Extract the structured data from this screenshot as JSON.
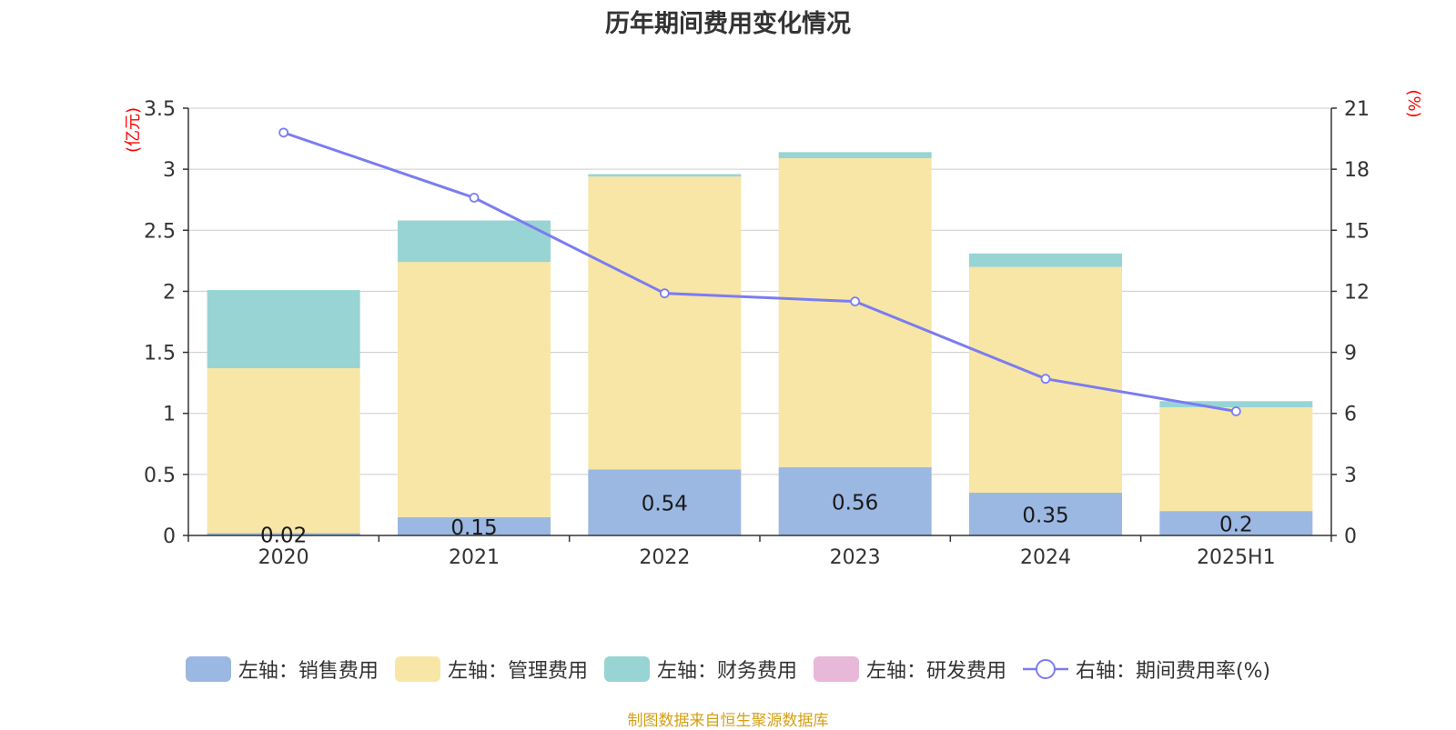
{
  "chart_data": {
    "type": "bar",
    "title": "历年期间费用变化情况",
    "categories": [
      "2020",
      "2021",
      "2022",
      "2023",
      "2024",
      "2025H1"
    ],
    "left_axis": {
      "label": "(亿元)",
      "min": 0,
      "max": 3.5,
      "ticks": [
        "0",
        "0.5",
        "1",
        "1.5",
        "2",
        "2.5",
        "3",
        "3.5"
      ],
      "tick_values": [
        0,
        0.5,
        1,
        1.5,
        2,
        2.5,
        3,
        3.5
      ]
    },
    "right_axis": {
      "label": "(%)",
      "min": 0,
      "max": 21,
      "ticks": [
        "0",
        "3",
        "6",
        "9",
        "12",
        "15",
        "18",
        "21"
      ],
      "tick_values": [
        0,
        3,
        6,
        9,
        12,
        15,
        18,
        21
      ]
    },
    "series": [
      {
        "name": "左轴：销售费用",
        "kind": "bar",
        "axis": "left",
        "color": "#9bb8e3",
        "values": [
          0.02,
          0.15,
          0.54,
          0.56,
          0.35,
          0.2
        ],
        "labels": [
          "0.02",
          "0.15",
          "0.54",
          "0.56",
          "0.35",
          "0.2"
        ]
      },
      {
        "name": "左轴：管理费用",
        "kind": "bar",
        "axis": "left",
        "color": "#f7e6a6",
        "values": [
          1.35,
          2.09,
          2.4,
          2.53,
          1.85,
          0.85
        ]
      },
      {
        "name": "左轴：财务费用",
        "kind": "bar",
        "axis": "left",
        "color": "#98d4d4",
        "values": [
          0.64,
          0.34,
          0.02,
          0.05,
          0.11,
          0.05
        ]
      },
      {
        "name": "左轴：研发费用",
        "kind": "bar",
        "axis": "left",
        "color": "#e8b8d8",
        "values": [
          0,
          0,
          0,
          0,
          0,
          0
        ]
      },
      {
        "name": "右轴：期间费用率(%)",
        "kind": "line",
        "axis": "right",
        "color": "#7b7cf0",
        "values": [
          19.8,
          16.6,
          11.9,
          11.5,
          7.7,
          6.1
        ]
      }
    ],
    "grid": true,
    "legend_position": "bottom"
  },
  "source_note": "制图数据来自恒生聚源数据库",
  "colors": {
    "axis_label": "#ff0000",
    "grid": "#cccccc",
    "axis": "#333333",
    "source": "#d4a017"
  }
}
